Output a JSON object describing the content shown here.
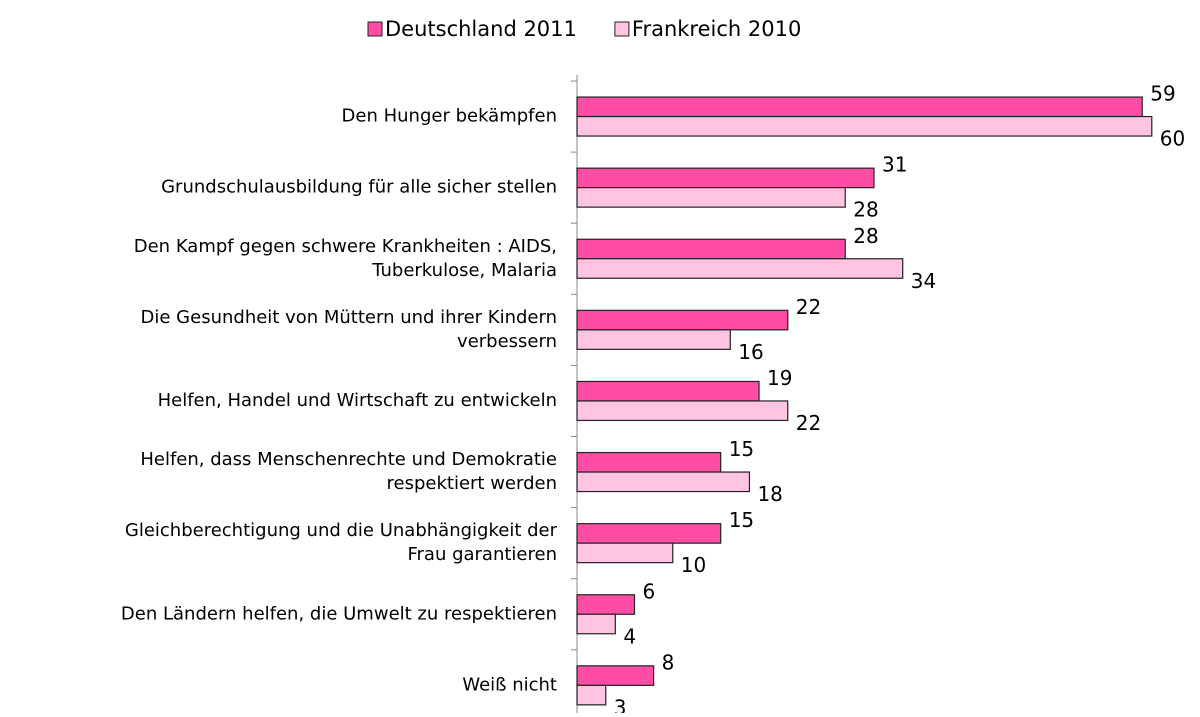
{
  "chart_data": {
    "type": "bar",
    "orientation": "horizontal",
    "categories": [
      "Den Hunger bekämpfen",
      "Grundschulausbildung für alle sicher stellen",
      "Den Kampf gegen schwere Krankheiten : AIDS,\nTuberkulose, Malaria",
      "Die Gesundheit von Müttern und ihrer Kindern\nverbessern",
      "Helfen, Handel und Wirtschaft zu entwickeln",
      "Helfen, dass Menschenrechte und Demokratie\nrespektiert werden",
      "Gleichberechtigung und die Unabhängigkeit der\nFrau garantieren",
      "Den Ländern helfen, die Umwelt zu respektieren",
      "Weiß nicht"
    ],
    "series": [
      {
        "name": "Deutschland 2011",
        "color": "#ff4da6",
        "values": [
          59,
          31,
          28,
          22,
          19,
          15,
          15,
          6,
          8
        ]
      },
      {
        "name": "Frankreich 2010",
        "color": "#ffc4e2",
        "values": [
          60,
          28,
          34,
          16,
          22,
          18,
          10,
          4,
          3
        ]
      }
    ],
    "xlim": [
      0,
      62
    ],
    "legend": "top"
  }
}
